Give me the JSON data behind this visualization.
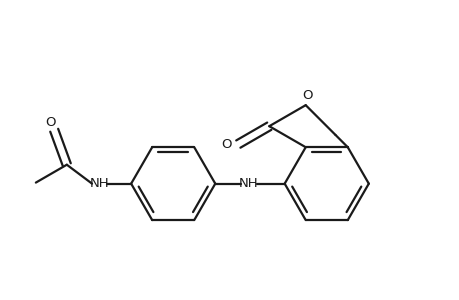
{
  "background_color": "#ffffff",
  "line_color": "#1a1a1a",
  "line_width": 1.6,
  "figure_width": 4.6,
  "figure_height": 3.0,
  "dpi": 100,
  "font_size": 9.5,
  "font_family": "DejaVu Sans",
  "xlim": [
    -0.5,
    9.5
  ],
  "ylim": [
    -1.5,
    5.5
  ]
}
